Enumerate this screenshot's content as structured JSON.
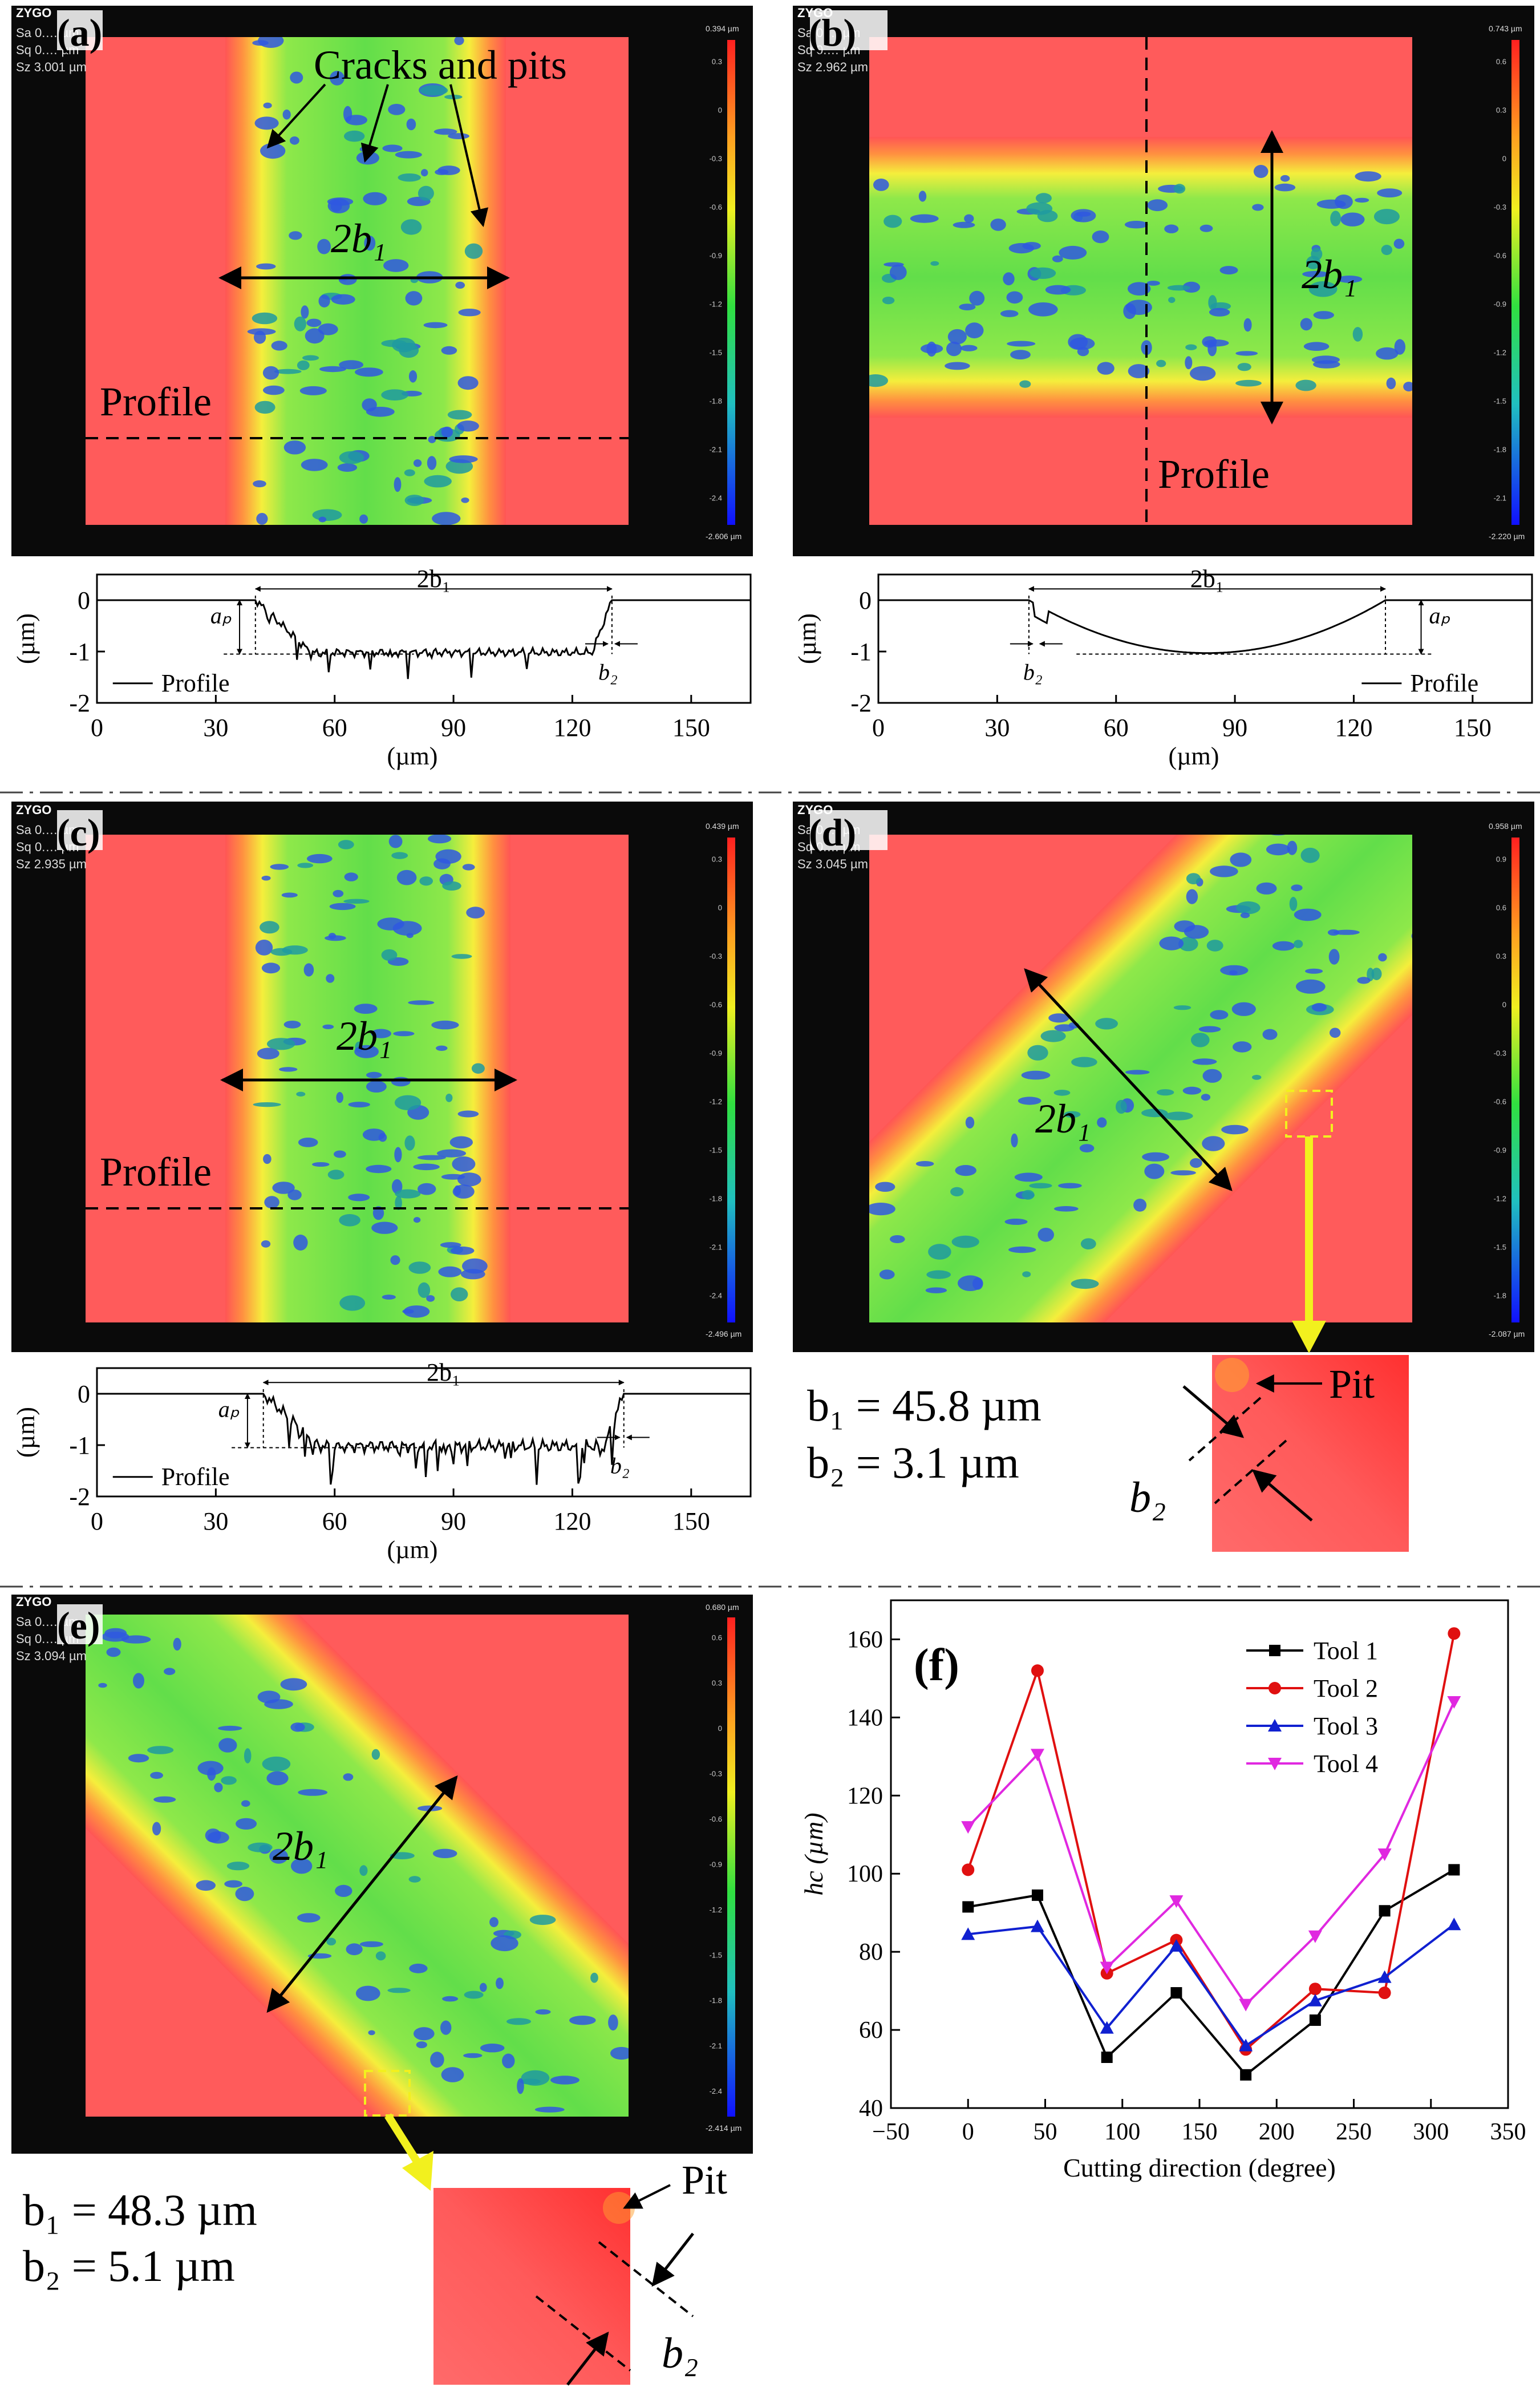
{
  "colors": {
    "surface_high": "#ff5b5b",
    "surface_mid": "#7fe84a",
    "surface_low": "#2f58e0",
    "edge_yellow": "#f4f03c",
    "instrument_bg": "#0a0a0a",
    "arrow_yellow": "#f2f01e",
    "tool1": "#000000",
    "tool2": "#e01010",
    "tool3": "#1020d0",
    "tool4": "#e028e0"
  },
  "logo_text": "ZYGO",
  "panels": {
    "a": {
      "label": "(a)",
      "stats": [
        "Sa 0.… µm",
        "Sq 0.… µm",
        "Sz 3.001 µm"
      ],
      "scale": {
        "top": "0.394 µm",
        "bottom": "-2.606 µm",
        "ticks": [
          "0.3",
          "0",
          "-0.3",
          "-0.6",
          "-0.9",
          "-1.2",
          "-1.5",
          "-1.8",
          "-2.1",
          "-2.4"
        ]
      },
      "annotation": "Cracks and pits",
      "width_label": "2b₁",
      "profile_label": "Profile"
    },
    "b": {
      "label": "(b)",
      "stats": [
        "Sa 0.… µm",
        "Sq 0.… µm",
        "Sz 2.962 µm"
      ],
      "scale": {
        "top": "0.743 µm",
        "bottom": "-2.220 µm",
        "ticks": [
          "0.6",
          "0.3",
          "0",
          "-0.3",
          "-0.6",
          "-0.9",
          "-1.2",
          "-1.5",
          "-1.8",
          "-2.1"
        ]
      },
      "width_label": "2b₁",
      "profile_label": "Profile"
    },
    "c": {
      "label": "(c)",
      "stats": [
        "Sa 0.… µm",
        "Sq 0.… µm",
        "Sz 2.935 µm"
      ],
      "scale": {
        "top": "0.439 µm",
        "bottom": "-2.496 µm",
        "ticks": [
          "0.3",
          "0",
          "-0.3",
          "-0.6",
          "-0.9",
          "-1.2",
          "-1.5",
          "-1.8",
          "-2.1",
          "-2.4"
        ]
      },
      "width_label": "2b₁",
      "profile_label": "Profile"
    },
    "d": {
      "label": "(d)",
      "stats": [
        "Sa 0.… µm",
        "Sq 0.… µm",
        "Sz 3.045 µm"
      ],
      "scale": {
        "top": "0.958 µm",
        "bottom": "-2.087 µm",
        "ticks": [
          "0.9",
          "0.6",
          "0.3",
          "0",
          "-0.3",
          "-0.6",
          "-0.9",
          "-1.2",
          "-1.5",
          "-1.8"
        ]
      },
      "width_label": "2b₁",
      "b1_text": "b₁ = 45.8 µm",
      "b2_text": "b₂ = 3.1 µm",
      "pit_label": "Pit",
      "b2_label": "b₂"
    },
    "e": {
      "label": "(e)",
      "stats": [
        "Sa 0.… µm",
        "Sq 0.… µm",
        "Sz 3.094 µm"
      ],
      "scale": {
        "top": "0.680 µm",
        "bottom": "-2.414 µm",
        "ticks": [
          "0.6",
          "0.3",
          "0",
          "-0.3",
          "-0.6",
          "-0.9",
          "-1.2",
          "-1.5",
          "-1.8",
          "-2.1",
          "-2.4"
        ]
      },
      "width_label": "2b₁",
      "b1_text": "b₁ = 48.3 µm",
      "b2_text": "b₂ = 5.1 µm",
      "pit_label": "Pit",
      "b2_label": "b₂"
    }
  },
  "profiles": {
    "common": {
      "ylabel": "(µm)",
      "xlabel": "(µm)",
      "xticks": [
        "0",
        "30",
        "60",
        "90",
        "120",
        "150"
      ],
      "yticks": [
        "0",
        "-1",
        "-2"
      ],
      "legend": "Profile",
      "dim_2b1": "2b₁",
      "dim_ap": "aₚ",
      "dim_b2": "b₂"
    }
  },
  "chart_data": {
    "type": "line",
    "title": "(f)",
    "xlabel": "Cutting direction (degree)",
    "ylabel": "hc (µm)",
    "xlim": [
      -50,
      350
    ],
    "ylim": [
      40,
      170
    ],
    "xticks": [
      -50,
      0,
      50,
      100,
      150,
      200,
      250,
      300,
      350
    ],
    "yticks": [
      40,
      60,
      80,
      100,
      120,
      140,
      160
    ],
    "x": [
      0,
      45,
      90,
      135,
      180,
      225,
      270,
      315
    ],
    "series": [
      {
        "name": "Tool 1",
        "color": "#000000",
        "marker": "square",
        "values": [
          91.5,
          94.5,
          53,
          69.5,
          48.5,
          62.5,
          90.5,
          101
        ]
      },
      {
        "name": "Tool 2",
        "color": "#e01010",
        "marker": "circle",
        "values": [
          101,
          152,
          74.5,
          83,
          55,
          70.5,
          69.5,
          161.5
        ]
      },
      {
        "name": "Tool 3",
        "color": "#1020d0",
        "marker": "triangle-up",
        "values": [
          84.5,
          86.5,
          60.5,
          81.5,
          56,
          67.5,
          73.5,
          87
        ]
      },
      {
        "name": "Tool 4",
        "color": "#e028e0",
        "marker": "triangle-down",
        "values": [
          112,
          130.5,
          76,
          93,
          66.5,
          84,
          105,
          144
        ]
      }
    ],
    "legend_position": "top-right"
  }
}
